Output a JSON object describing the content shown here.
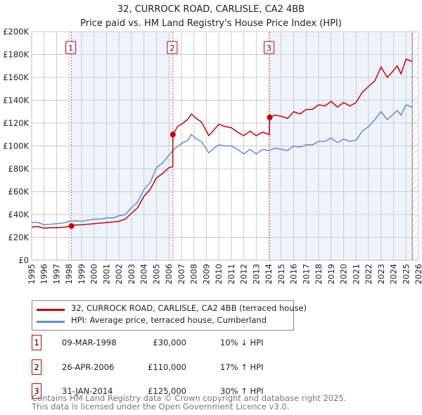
{
  "title": "32, CURROCK ROAD, CARLISLE, CA2 4BB",
  "subtitle": "Price paid vs. HM Land Registry's House Price Index (HPI)",
  "chart_data": {
    "type": "line",
    "xlim": [
      1995,
      2026
    ],
    "ylim": [
      0,
      200000
    ],
    "yticks": [
      0,
      20000,
      40000,
      60000,
      80000,
      100000,
      120000,
      140000,
      160000,
      180000,
      200000
    ],
    "ytick_labels": [
      "£0",
      "£20K",
      "£40K",
      "£60K",
      "£80K",
      "£100K",
      "£120K",
      "£140K",
      "£160K",
      "£180K",
      "£200K"
    ],
    "xticks": [
      "1995",
      "1996",
      "1997",
      "1998",
      "1999",
      "2000",
      "2001",
      "2002",
      "2003",
      "2004",
      "2005",
      "2006",
      "2007",
      "2008",
      "2009",
      "2010",
      "2011",
      "2012",
      "2013",
      "2014",
      "2015",
      "2016",
      "2017",
      "2018",
      "2019",
      "2020",
      "2021",
      "2022",
      "2023",
      "2024",
      "2025",
      "2026"
    ],
    "shaded_ranges": [
      [
        1998.19,
        2006.32
      ],
      [
        2014.08,
        2025.5
      ]
    ],
    "hatched_from": 2025.5,
    "series": [
      {
        "name": "32, CURROCK ROAD, CARLISLE, CA2 4BB (terraced house)",
        "color": "#cc0000",
        "x": [
          1995,
          1995.5,
          1996,
          1996.5,
          1997,
          1997.5,
          1998.19,
          1998.6,
          1999,
          1999.5,
          2000,
          2000.5,
          2001,
          2001.5,
          2002,
          2002.5,
          2003,
          2003.5,
          2004,
          2004.5,
          2005,
          2005.5,
          2006,
          2006.31,
          2006.32,
          2006.7,
          2007,
          2007.5,
          2007.8,
          2008.2,
          2008.6,
          2009.2,
          2009.6,
          2010,
          2010.5,
          2011,
          2011.5,
          2012,
          2012.5,
          2013,
          2013.5,
          2014.05,
          2014.08,
          2014.5,
          2015,
          2015.5,
          2016,
          2016.5,
          2017,
          2017.5,
          2018,
          2018.5,
          2019,
          2019.5,
          2020,
          2020.5,
          2021,
          2021.5,
          2022,
          2022.5,
          2023,
          2023.5,
          2024,
          2024.3,
          2024.6,
          2025,
          2025.5
        ],
        "y": [
          29000,
          29500,
          28000,
          28500,
          28500,
          28800,
          30000,
          31000,
          31000,
          31500,
          32000,
          32500,
          33000,
          33500,
          34000,
          36000,
          41000,
          46000,
          56000,
          62000,
          72000,
          76000,
          81000,
          82000,
          110000,
          117000,
          119000,
          123000,
          128000,
          124000,
          121000,
          109000,
          114000,
          119000,
          117000,
          116000,
          112000,
          109000,
          113000,
          109000,
          112000,
          110000,
          125000,
          127000,
          126000,
          124000,
          130000,
          128000,
          132000,
          132000,
          136000,
          135000,
          139000,
          134000,
          138000,
          135000,
          138000,
          147000,
          152000,
          157000,
          169000,
          160000,
          166000,
          170000,
          163000,
          176000,
          174000
        ]
      },
      {
        "name": "HPI: Average price, terraced house, Cumberland",
        "color": "#5b8fd4",
        "x": [
          1995,
          1995.5,
          1996,
          1996.5,
          1997,
          1997.5,
          1998,
          1998.5,
          1999,
          1999.5,
          2000,
          2000.5,
          2001,
          2001.5,
          2002,
          2002.5,
          2003,
          2003.5,
          2004,
          2004.5,
          2005,
          2005.5,
          2006,
          2006.5,
          2007,
          2007.5,
          2007.8,
          2008.2,
          2008.6,
          2009.2,
          2009.6,
          2010,
          2010.5,
          2011,
          2011.5,
          2012,
          2012.5,
          2013,
          2013.5,
          2014,
          2014.5,
          2015,
          2015.5,
          2016,
          2016.5,
          2017,
          2017.5,
          2018,
          2018.5,
          2019,
          2019.5,
          2020,
          2020.5,
          2021,
          2021.5,
          2022,
          2022.5,
          2023,
          2023.5,
          2024,
          2024.3,
          2024.6,
          2025,
          2025.5
        ],
        "y": [
          33000,
          33000,
          31000,
          31500,
          32000,
          32500,
          34000,
          34500,
          34000,
          35000,
          36000,
          36000,
          37000,
          37000,
          39000,
          40000,
          46000,
          51000,
          62000,
          68000,
          81000,
          85000,
          92000,
          98000,
          102000,
          105000,
          110000,
          106000,
          104000,
          94000,
          98000,
          101000,
          100000,
          100000,
          97000,
          93000,
          97000,
          93000,
          97000,
          96000,
          98000,
          97000,
          96000,
          100000,
          99000,
          101000,
          101000,
          104000,
          104000,
          107000,
          103000,
          106000,
          104000,
          105000,
          113000,
          117000,
          123000,
          130000,
          123000,
          128000,
          131000,
          127000,
          136000,
          134000
        ]
      }
    ],
    "markers": [
      {
        "label": "1",
        "x": 1998.19,
        "y": 30000
      },
      {
        "label": "2",
        "x": 2006.32,
        "y": 110000
      },
      {
        "label": "3",
        "x": 2014.08,
        "y": 125000
      }
    ]
  },
  "legend": {
    "red": "32, CURROCK ROAD, CARLISLE, CA2 4BB (terraced house)",
    "blue": "HPI: Average price, terraced house, Cumberland"
  },
  "transactions": [
    {
      "num": "1",
      "date": "09-MAR-1998",
      "price": "£30,000",
      "hpi": "10% ↓ HPI"
    },
    {
      "num": "2",
      "date": "26-APR-2006",
      "price": "£110,000",
      "hpi": "17% ↑ HPI"
    },
    {
      "num": "3",
      "date": "31-JAN-2014",
      "price": "£125,000",
      "hpi": "30% ↑ HPI"
    }
  ],
  "footer": [
    "Contains HM Land Registry data © Crown copyright and database right 2025.",
    "This data is licensed under the Open Government Licence v3.0."
  ]
}
